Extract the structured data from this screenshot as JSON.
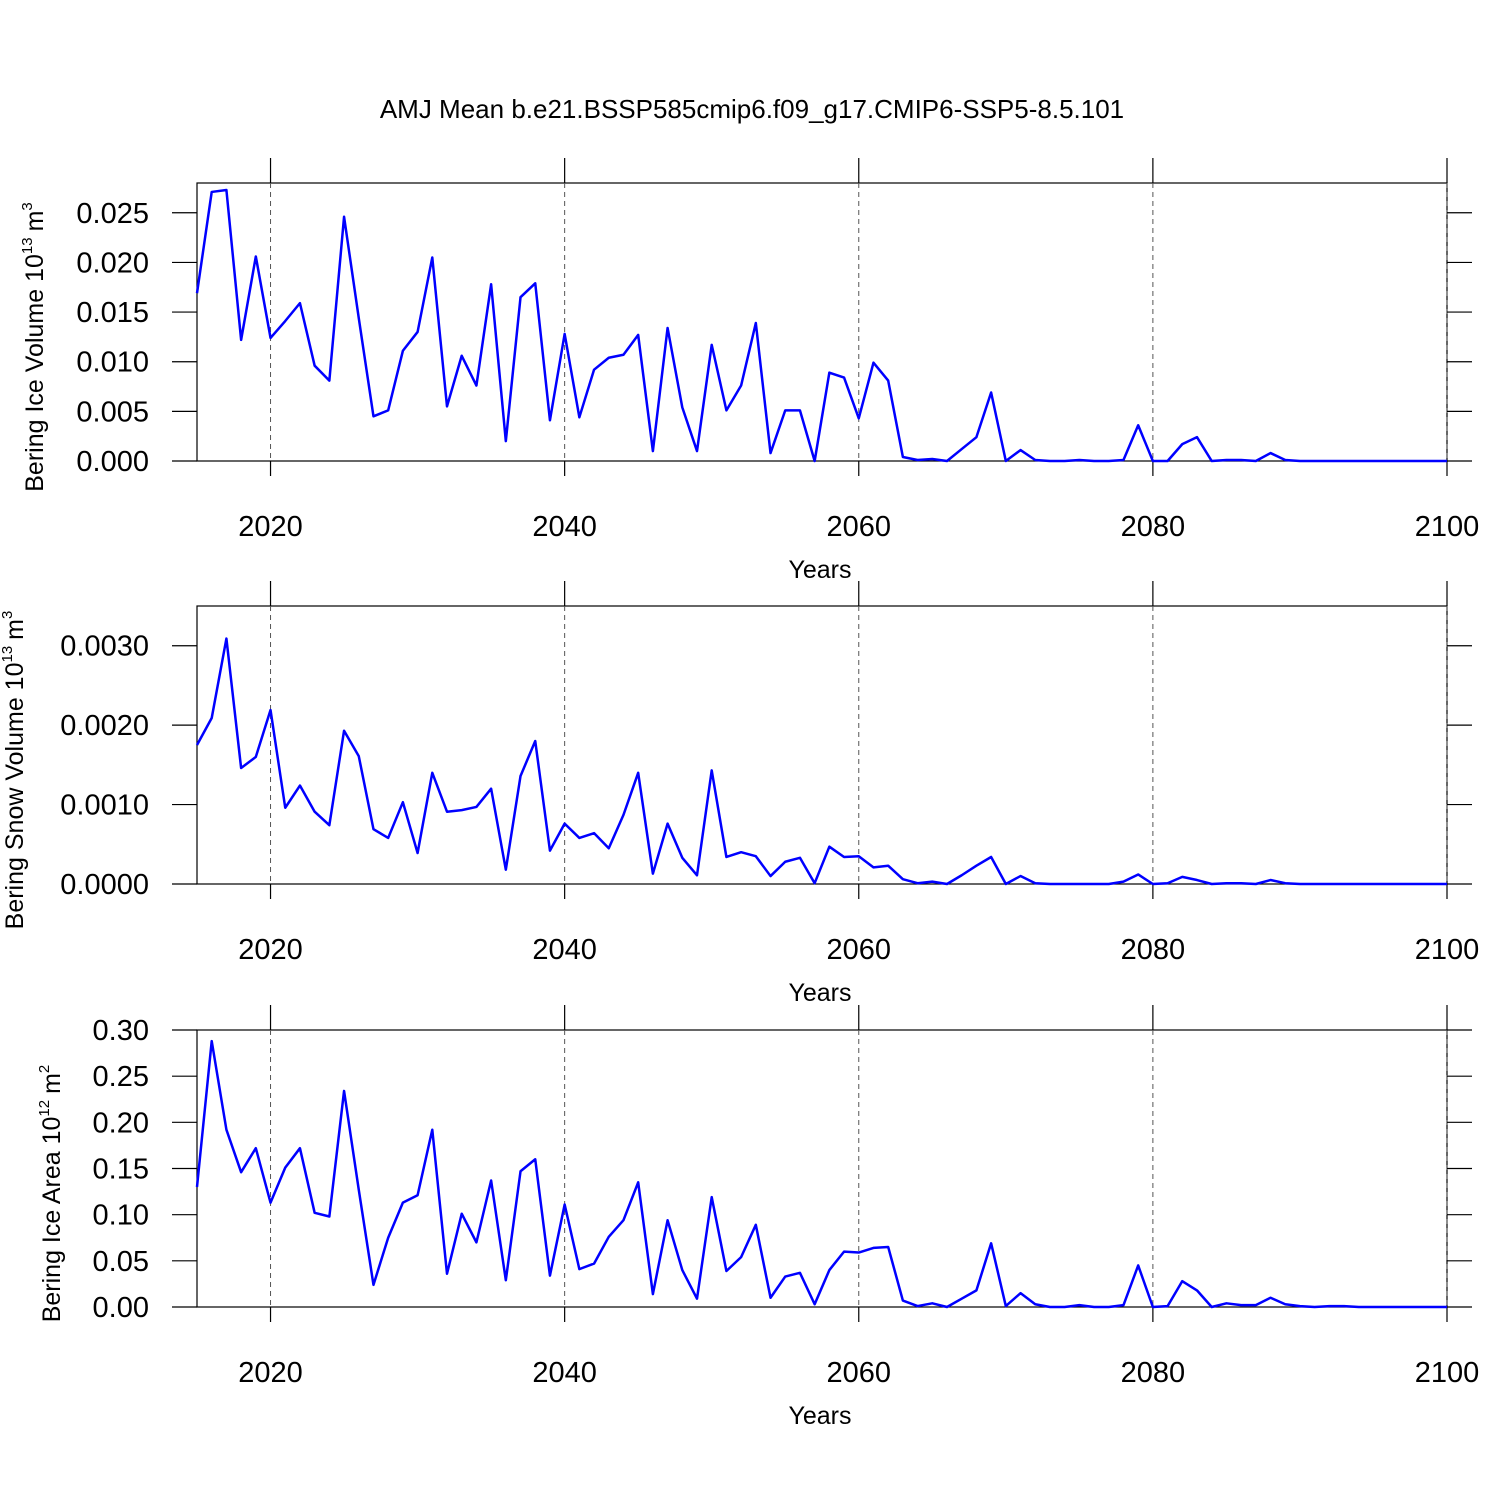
{
  "title": "AMJ Mean b.e21.BSSP585cmip6.f09_g17.CMIP6-SSP5-8.5.101",
  "chart_data": [
    {
      "type": "line",
      "ylabel": [
        "Bering Ice Volume 10",
        "13",
        "m",
        "3"
      ],
      "xlabel": "Years",
      "color": "#0000ff",
      "xlim": [
        2015,
        2100
      ],
      "xticks": [
        2020,
        2040,
        2060,
        2080,
        2100
      ],
      "grid": "x",
      "grid_style": "dashed",
      "ylim": [
        0,
        0.028
      ],
      "yticks": [
        {
          "value": 0,
          "label": "0.000"
        },
        {
          "value": 0.005,
          "label": "0.005"
        },
        {
          "value": 0.01,
          "label": "0.010"
        },
        {
          "value": 0.015,
          "label": "0.015"
        },
        {
          "value": 0.02,
          "label": "0.020"
        },
        {
          "value": 0.025,
          "label": "0.025"
        }
      ],
      "x": [
        2015,
        2016,
        2017,
        2018,
        2019,
        2020,
        2021,
        2022,
        2023,
        2024,
        2025,
        2026,
        2027,
        2028,
        2029,
        2030,
        2031,
        2032,
        2033,
        2034,
        2035,
        2036,
        2037,
        2038,
        2039,
        2040,
        2041,
        2042,
        2043,
        2044,
        2045,
        2046,
        2047,
        2048,
        2049,
        2050,
        2051,
        2052,
        2053,
        2054,
        2055,
        2056,
        2057,
        2058,
        2059,
        2060,
        2061,
        2062,
        2063,
        2064,
        2065,
        2066,
        2067,
        2068,
        2069,
        2070,
        2071,
        2072,
        2073,
        2074,
        2075,
        2076,
        2077,
        2078,
        2079,
        2080,
        2081,
        2082,
        2083,
        2084,
        2085,
        2086,
        2087,
        2088,
        2089,
        2090,
        2091,
        2092,
        2093,
        2094,
        2095,
        2096,
        2097,
        2098,
        2099,
        2100
      ],
      "values": [
        0.0169,
        0.0271,
        0.0273,
        0.0122,
        0.0206,
        0.0124,
        0.0141,
        0.0159,
        0.0096,
        0.0081,
        0.0246,
        0.0144,
        0.0045,
        0.0051,
        0.0111,
        0.013,
        0.0205,
        0.0055,
        0.0106,
        0.0076,
        0.0178,
        0.002,
        0.0165,
        0.0179,
        0.0041,
        0.0128,
        0.0044,
        0.0092,
        0.0104,
        0.0107,
        0.0127,
        0.001,
        0.0134,
        0.0054,
        0.001,
        0.0117,
        0.0051,
        0.0076,
        0.0139,
        0.0008,
        0.0051,
        0.0051,
        0,
        0.0089,
        0.0084,
        0.0043,
        0.0099,
        0.0081,
        0.0004,
        0.0001,
        0.0002,
        0,
        0.0012,
        0.0024,
        0.0069,
        0,
        0.0011,
        0.0001,
        0,
        0,
        0.0001,
        0,
        0,
        0.0001,
        0.0036,
        0,
        0,
        0.0017,
        0.0024,
        0,
        0.0001,
        0.0001,
        0,
        0.0008,
        0.0001,
        0,
        0,
        0,
        0,
        0,
        0,
        0,
        0,
        0,
        0,
        0
      ]
    },
    {
      "type": "line",
      "ylabel": [
        "Bering Snow Volume 10",
        "13",
        "m",
        "3"
      ],
      "xlabel": "Years",
      "color": "#0000ff",
      "xlim": [
        2015,
        2100
      ],
      "xticks": [
        2020,
        2040,
        2060,
        2080,
        2100
      ],
      "grid": "x",
      "grid_style": "dashed",
      "ylim": [
        0,
        0.0035
      ],
      "yticks": [
        {
          "value": 0,
          "label": "0.0000"
        },
        {
          "value": 0.001,
          "label": "0.0010"
        },
        {
          "value": 0.002,
          "label": "0.0020"
        },
        {
          "value": 0.003,
          "label": "0.0030"
        }
      ],
      "x": [
        2015,
        2016,
        2017,
        2018,
        2019,
        2020,
        2021,
        2022,
        2023,
        2024,
        2025,
        2026,
        2027,
        2028,
        2029,
        2030,
        2031,
        2032,
        2033,
        2034,
        2035,
        2036,
        2037,
        2038,
        2039,
        2040,
        2041,
        2042,
        2043,
        2044,
        2045,
        2046,
        2047,
        2048,
        2049,
        2050,
        2051,
        2052,
        2053,
        2054,
        2055,
        2056,
        2057,
        2058,
        2059,
        2060,
        2061,
        2062,
        2063,
        2064,
        2065,
        2066,
        2067,
        2068,
        2069,
        2070,
        2071,
        2072,
        2073,
        2074,
        2075,
        2076,
        2077,
        2078,
        2079,
        2080,
        2081,
        2082,
        2083,
        2084,
        2085,
        2086,
        2087,
        2088,
        2089,
        2090,
        2091,
        2092,
        2093,
        2094,
        2095,
        2096,
        2097,
        2098,
        2099,
        2100
      ],
      "values": [
        0.00175,
        0.00209,
        0.00309,
        0.00146,
        0.0016,
        0.00219,
        0.00096,
        0.00124,
        0.00091,
        0.00074,
        0.00193,
        0.00161,
        0.00069,
        0.00058,
        0.00103,
        0.00039,
        0.0014,
        0.00091,
        0.00093,
        0.00097,
        0.0012,
        0.00018,
        0.00136,
        0.0018,
        0.00042,
        0.00076,
        0.00058,
        0.00064,
        0.00045,
        0.00087,
        0.0014,
        0.00013,
        0.00076,
        0.00033,
        0.00011,
        0.00143,
        0.00034,
        0.0004,
        0.00035,
        0.0001,
        0.00028,
        0.00033,
        1e-05,
        0.00047,
        0.00034,
        0.00035,
        0.00021,
        0.00023,
        6e-05,
        1e-05,
        3e-05,
        0,
        0.00011,
        0.00023,
        0.00034,
        0,
        0.0001,
        1e-05,
        0,
        0,
        0,
        0,
        0,
        3e-05,
        0.00012,
        0,
        1e-05,
        9e-05,
        5e-05,
        0,
        1e-05,
        1e-05,
        0,
        5e-05,
        1e-05,
        0,
        0,
        0,
        0,
        0,
        0,
        0,
        0,
        0,
        0,
        0
      ]
    },
    {
      "type": "line",
      "ylabel": [
        "Bering Ice Area 10",
        "12",
        "m",
        "2"
      ],
      "xlabel": "Years",
      "color": "#0000ff",
      "xlim": [
        2015,
        2100
      ],
      "xticks": [
        2020,
        2040,
        2060,
        2080,
        2100
      ],
      "grid": "x",
      "grid_style": "dashed",
      "ylim": [
        0,
        0.3
      ],
      "yticks": [
        {
          "value": 0,
          "label": "0.00"
        },
        {
          "value": 0.05,
          "label": "0.05"
        },
        {
          "value": 0.1,
          "label": "0.10"
        },
        {
          "value": 0.15,
          "label": "0.15"
        },
        {
          "value": 0.2,
          "label": "0.20"
        },
        {
          "value": 0.25,
          "label": "0.25"
        },
        {
          "value": 0.3,
          "label": "0.30"
        }
      ],
      "x": [
        2015,
        2016,
        2017,
        2018,
        2019,
        2020,
        2021,
        2022,
        2023,
        2024,
        2025,
        2026,
        2027,
        2028,
        2029,
        2030,
        2031,
        2032,
        2033,
        2034,
        2035,
        2036,
        2037,
        2038,
        2039,
        2040,
        2041,
        2042,
        2043,
        2044,
        2045,
        2046,
        2047,
        2048,
        2049,
        2050,
        2051,
        2052,
        2053,
        2054,
        2055,
        2056,
        2057,
        2058,
        2059,
        2060,
        2061,
        2062,
        2063,
        2064,
        2065,
        2066,
        2067,
        2068,
        2069,
        2070,
        2071,
        2072,
        2073,
        2074,
        2075,
        2076,
        2077,
        2078,
        2079,
        2080,
        2081,
        2082,
        2083,
        2084,
        2085,
        2086,
        2087,
        2088,
        2089,
        2090,
        2091,
        2092,
        2093,
        2094,
        2095,
        2096,
        2097,
        2098,
        2099,
        2100
      ],
      "values": [
        0.13,
        0.288,
        0.192,
        0.146,
        0.172,
        0.113,
        0.151,
        0.172,
        0.102,
        0.098,
        0.234,
        0.127,
        0.024,
        0.075,
        0.113,
        0.121,
        0.192,
        0.036,
        0.101,
        0.07,
        0.137,
        0.029,
        0.147,
        0.16,
        0.034,
        0.111,
        0.041,
        0.047,
        0.076,
        0.094,
        0.135,
        0.014,
        0.094,
        0.04,
        0.009,
        0.119,
        0.039,
        0.054,
        0.089,
        0.01,
        0.033,
        0.037,
        0.003,
        0.04,
        0.06,
        0.059,
        0.064,
        0.065,
        0.007,
        0.001,
        0.004,
        0,
        0.009,
        0.018,
        0.069,
        0.001,
        0.015,
        0.003,
        0,
        0,
        0.002,
        0,
        0,
        0.002,
        0.045,
        0,
        0.001,
        0.028,
        0.018,
        0,
        0.004,
        0.002,
        0.002,
        0.01,
        0.003,
        0.001,
        0,
        0.001,
        0.001,
        0,
        0,
        0,
        0,
        0,
        0,
        0
      ]
    }
  ]
}
